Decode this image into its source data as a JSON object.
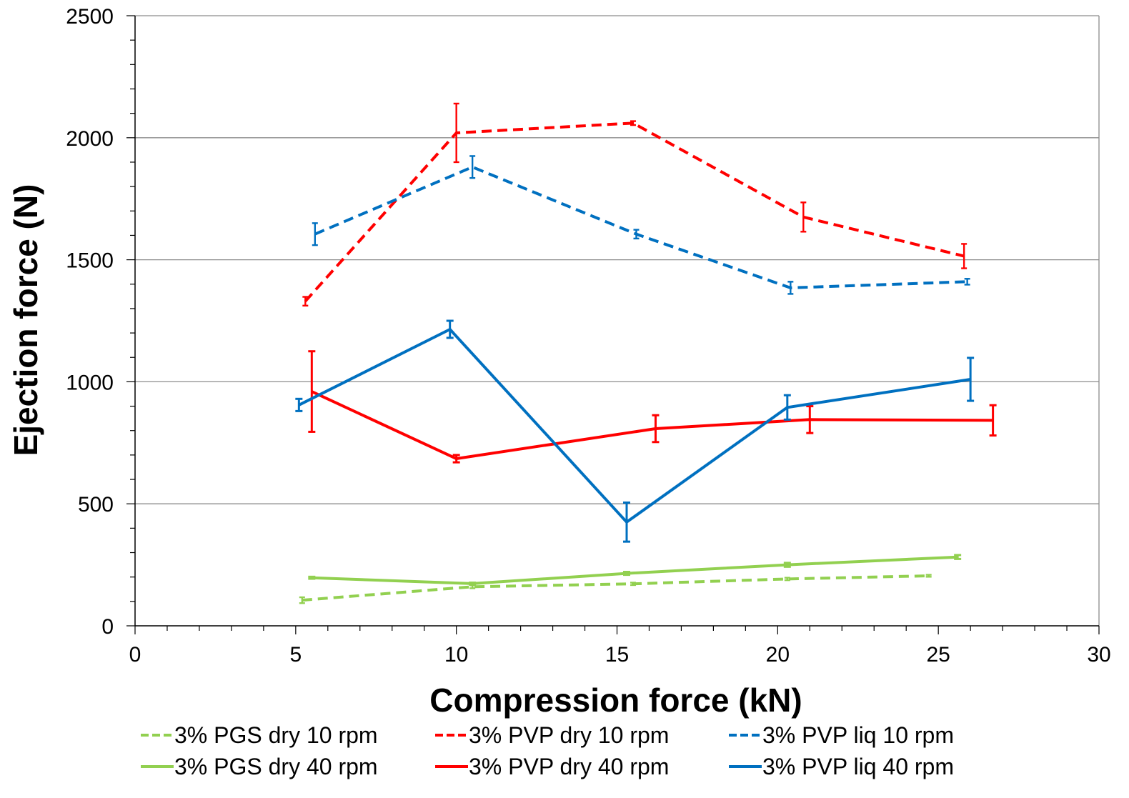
{
  "chart_data": {
    "type": "line",
    "title": "",
    "xlabel": "Compression force (kN)",
    "ylabel": "Ejection force (N)",
    "xlim": [
      0,
      30
    ],
    "ylim": [
      0,
      2500
    ],
    "x_ticks": [
      0,
      5,
      10,
      15,
      20,
      25,
      30
    ],
    "y_ticks": [
      0,
      500,
      1000,
      1500,
      2000,
      2500
    ],
    "x_minor_step": 1,
    "y_minor_step": 100,
    "grid": "horizontal major",
    "legend_position": "bottom",
    "series": [
      {
        "name": "3% PGS dry 10 rpm",
        "color": "#92D050",
        "dash": "dashed",
        "x": [
          5.2,
          10.5,
          15.5,
          20.3,
          24.7
        ],
        "y": [
          105,
          160,
          172,
          192,
          205
        ],
        "err": [
          12,
          6,
          5,
          5,
          4
        ]
      },
      {
        "name": "3% PVP dry 10 rpm",
        "color": "#FF0000",
        "dash": "dashed",
        "x": [
          5.3,
          10.0,
          15.5,
          20.8,
          25.8
        ],
        "y": [
          1330,
          2020,
          2060,
          1675,
          1515
        ],
        "err": [
          18,
          120,
          8,
          60,
          50
        ]
      },
      {
        "name": "3% PVP liq 10 rpm",
        "color": "#0070C0",
        "dash": "dashed",
        "x": [
          5.6,
          10.5,
          15.6,
          20.4,
          25.9
        ],
        "y": [
          1605,
          1880,
          1605,
          1385,
          1410
        ],
        "err": [
          45,
          45,
          18,
          25,
          12
        ]
      },
      {
        "name": "3% PGS dry 40 rpm",
        "color": "#92D050",
        "dash": "solid",
        "x": [
          5.5,
          10.5,
          15.3,
          20.3,
          25.6
        ],
        "y": [
          197,
          173,
          215,
          250,
          282
        ],
        "err": [
          4,
          4,
          6,
          8,
          8
        ]
      },
      {
        "name": "3% PVP dry 40 rpm",
        "color": "#FF0000",
        "dash": "solid",
        "x": [
          5.5,
          10.0,
          16.2,
          21.0,
          26.7
        ],
        "y": [
          960,
          685,
          808,
          845,
          842
        ],
        "err": [
          165,
          15,
          55,
          55,
          62
        ]
      },
      {
        "name": "3% PVP liq 40 rpm",
        "color": "#0070C0",
        "dash": "solid",
        "x": [
          5.1,
          9.8,
          15.3,
          20.3,
          26.0
        ],
        "y": [
          905,
          1215,
          425,
          895,
          1010
        ],
        "err": [
          25,
          35,
          80,
          50,
          88
        ]
      }
    ]
  }
}
